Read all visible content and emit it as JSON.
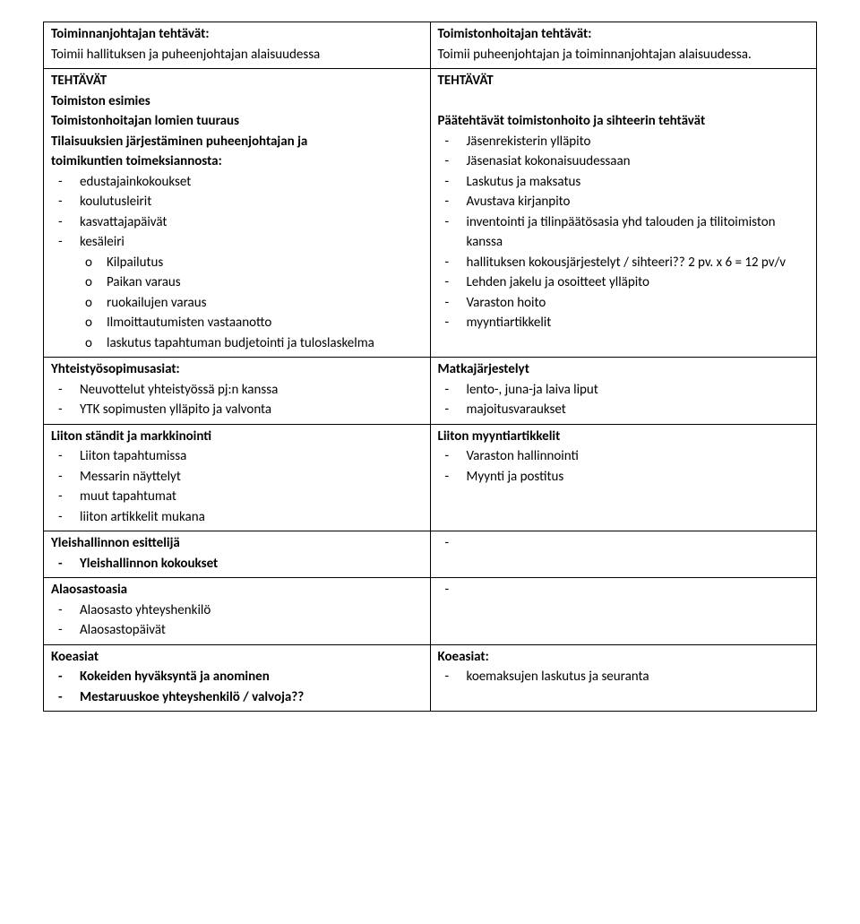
{
  "left": {
    "r1_title": "Toiminnanjohtajan tehtävät:",
    "r1_line": "Toimii hallituksen ja puheenjohtajan alaisuudessa",
    "r2_h1": "TEHTÄVÄT",
    "r2_h2": "Toimiston esimies",
    "r2_h3": "Toimistonhoitajan lomien tuuraus",
    "r2_h4a": "Tilaisuuksien järjestäminen puheenjohtajan ja",
    "r2_h4b": "toimikuntien toimeksiannosta:",
    "r2_items": [
      "edustajainkokoukset",
      "koulutusleirit",
      "kasvattajapäivät",
      "kesäleiri"
    ],
    "r2_sub": [
      "Kilpailutus",
      "Paikan varaus",
      "ruokailujen varaus",
      "Ilmoittautumisten vastaanotto",
      "laskutus tapahtuman budjetointi ja tuloslaskelma"
    ],
    "r3_h": "Yhteistyösopimusasiat:",
    "r3_items": [
      "Neuvottelut yhteistyössä pj:n kanssa",
      "YTK sopimusten ylläpito ja valvonta"
    ],
    "r4_h": "Liiton ständit ja markkinointi",
    "r4_items": [
      "Liiton tapahtumissa",
      "Messarin näyttelyt",
      "muut tapahtumat",
      "liiton artikkelit mukana"
    ],
    "r5_h": "Yleishallinnon esittelijä",
    "r5_items": [
      "Yleishallinnon kokoukset"
    ],
    "r6_h": "Alaosastoasia",
    "r6_items": [
      "Alaosasto yhteyshenkilö",
      "Alaosastopäivät"
    ],
    "r7_h": "Koeasiat",
    "r7_items": [
      "Kokeiden hyväksyntä ja anominen",
      "Mestaruuskoe yhteyshenkilö / valvoja??"
    ]
  },
  "right": {
    "r1_title": "Toimistonhoitajan tehtävät:",
    "r1_line": "Toimii puheenjohtajan ja toiminnanjohtajan alaisuudessa.",
    "r2_h1": "TEHTÄVÄT",
    "r2_h2": "Päätehtävät toimistonhoito ja sihteerin tehtävät",
    "r2_items": [
      "Jäsenrekisterin ylläpito",
      "Jäsenasiat kokonaisuudessaan",
      "Laskutus ja maksatus",
      "Avustava kirjanpito",
      "inventointi ja tilinpäätösasia yhd talouden ja tilitoimiston kanssa",
      "hallituksen kokousjärjestelyt / sihteeri?? 2 pv. x 6 = 12 pv/v",
      "Lehden jakelu ja osoitteet ylläpito",
      "Varaston hoito",
      "myyntiartikkelit"
    ],
    "r3_h": "Matkajärjestelyt",
    "r3_items": [
      "lento-, juna-ja laiva liput",
      "majoitusvaraukset"
    ],
    "r4_h": "Liiton myyntiartikkelit",
    "r4_items": [
      "Varaston hallinnointi",
      "Myynti ja postitus"
    ],
    "r5_dash": "-",
    "r6_dash": "-",
    "r7_h": "Koeasiat:",
    "r7_items": [
      "koemaksujen laskutus ja seuranta"
    ]
  }
}
